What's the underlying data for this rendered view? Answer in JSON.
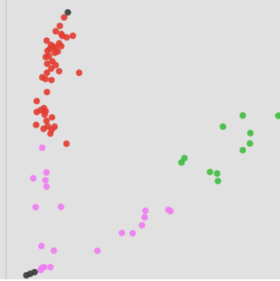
{
  "chart_data": {
    "type": "scatter",
    "title": "",
    "xlabel": "",
    "ylabel": "",
    "xlim": [
      0,
      100
    ],
    "ylim": [
      0,
      100
    ],
    "grid": false,
    "legend": "none",
    "background_color": "#e1e1e1",
    "series": [
      {
        "color": "#e23b30",
        "points": [
          [
            18.8,
            96.8
          ],
          [
            17.2,
            93.6
          ],
          [
            15.6,
            91.6
          ],
          [
            17.7,
            90.6
          ],
          [
            19.8,
            89.3
          ],
          [
            22.1,
            89.9
          ],
          [
            18.1,
            89.9
          ],
          [
            12.2,
            88.1
          ],
          [
            13.8,
            86.5
          ],
          [
            14.6,
            85.9
          ],
          [
            15.5,
            85.5
          ],
          [
            16.9,
            87.1
          ],
          [
            17.7,
            86.0
          ],
          [
            13.4,
            85.0
          ],
          [
            15.2,
            83.5
          ],
          [
            16.4,
            84.0
          ],
          [
            12.5,
            84.2
          ],
          [
            11.8,
            81.9
          ],
          [
            13.0,
            82.2
          ],
          [
            14.3,
            80.3
          ],
          [
            12.4,
            79.4
          ],
          [
            15.6,
            78.9
          ],
          [
            13.9,
            77.6
          ],
          [
            16.9,
            76.6
          ],
          [
            12.3,
            76.0
          ],
          [
            24.5,
            76.0
          ],
          [
            10.5,
            74.3
          ],
          [
            11.7,
            73.7
          ],
          [
            14.0,
            73.3
          ],
          [
            12.3,
            68.8
          ],
          [
            8.4,
            65.4
          ],
          [
            11.1,
            62.8
          ],
          [
            9.9,
            62.0
          ],
          [
            11.8,
            61.6
          ],
          [
            8.4,
            61.3
          ],
          [
            11.4,
            60.3
          ],
          [
            14.2,
            59.3
          ],
          [
            12.1,
            58.0
          ],
          [
            8.2,
            56.5
          ],
          [
            12.6,
            55.9
          ],
          [
            15.2,
            55.8
          ],
          [
            11.0,
            55.0
          ],
          [
            14.1,
            54.7
          ],
          [
            13.6,
            53.2
          ],
          [
            19.7,
            49.4
          ]
        ]
      },
      {
        "color": "#3dbd3d",
        "points": [
          [
            100.0,
            59.9
          ],
          [
            86.5,
            60.0
          ],
          [
            79.0,
            55.8
          ],
          [
            89.4,
            53.4
          ],
          [
            89.2,
            49.5
          ],
          [
            86.5,
            47.0
          ],
          [
            64.4,
            44.0
          ],
          [
            63.3,
            42.4
          ],
          [
            74.1,
            38.8
          ],
          [
            76.8,
            38.2
          ],
          [
            77.1,
            35.4
          ]
        ]
      },
      {
        "color": "#f07cf2",
        "points": [
          [
            10.5,
            47.9
          ],
          [
            12.1,
            38.6
          ],
          [
            7.1,
            36.4
          ],
          [
            11.7,
            35.7
          ],
          [
            12.1,
            33.3
          ],
          [
            8.0,
            25.6
          ],
          [
            17.6,
            25.7
          ],
          [
            49.6,
            24.2
          ],
          [
            58.3,
            24.6
          ],
          [
            59.1,
            24.1
          ],
          [
            49.3,
            21.8
          ],
          [
            48.3,
            18.8
          ],
          [
            40.7,
            15.9
          ],
          [
            44.8,
            15.8
          ],
          [
            10.2,
            11.0
          ],
          [
            14.9,
            9.3
          ],
          [
            31.4,
            9.2
          ],
          [
            11.2,
            3.1
          ],
          [
            10.3,
            2.8
          ],
          [
            13.6,
            3.1
          ],
          [
            9.9,
            2.0
          ]
        ]
      },
      {
        "color": "#393939",
        "points": [
          [
            20.2,
            98.7
          ],
          [
            7.6,
            1.2
          ],
          [
            6.0,
            0.6
          ],
          [
            4.5,
            0.0
          ]
        ]
      }
    ]
  }
}
